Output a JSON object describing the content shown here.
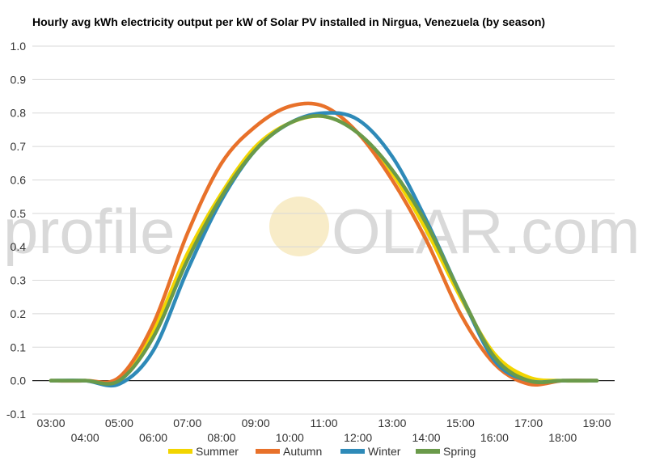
{
  "chart_data": {
    "type": "line",
    "title": "Hourly avg kWh electricity output per kW of Solar PV installed in Nirgua, Venezuela (by season)",
    "xlabel": "",
    "ylabel": "",
    "ylim": [
      -0.1,
      1.0
    ],
    "yticks": [
      "-0.1",
      "0.0",
      "0.1",
      "0.2",
      "0.3",
      "0.4",
      "0.5",
      "0.6",
      "0.7",
      "0.8",
      "0.9",
      "1.0"
    ],
    "x_tick_labels": [
      "03:00",
      "04:00",
      "05:00",
      "06:00",
      "07:00",
      "08:00",
      "09:00",
      "10:00",
      "11:00",
      "12:00",
      "13:00",
      "14:00",
      "15:00",
      "16:00",
      "17:00",
      "18:00",
      "19:00"
    ],
    "x": [
      3,
      4,
      5,
      6,
      7,
      8,
      9,
      10,
      11,
      12,
      13,
      14,
      15,
      16,
      17,
      18,
      19
    ],
    "grid": true,
    "legend": "bottom",
    "watermark": "profileSOLAR.com",
    "series": [
      {
        "name": "Summer",
        "color": "#f2d500",
        "values": [
          0.0,
          0.0,
          0.0,
          0.15,
          0.38,
          0.56,
          0.7,
          0.77,
          0.79,
          0.74,
          0.62,
          0.45,
          0.25,
          0.08,
          0.01,
          0.0,
          0.0
        ]
      },
      {
        "name": "Autumn",
        "color": "#e8712a",
        "values": [
          0.0,
          0.0,
          0.01,
          0.17,
          0.44,
          0.65,
          0.76,
          0.82,
          0.82,
          0.74,
          0.6,
          0.42,
          0.2,
          0.05,
          -0.01,
          0.0,
          0.0
        ]
      },
      {
        "name": "Winter",
        "color": "#2e8ab8",
        "values": [
          0.0,
          0.0,
          -0.01,
          0.09,
          0.33,
          0.54,
          0.69,
          0.77,
          0.8,
          0.78,
          0.67,
          0.48,
          0.26,
          0.06,
          0.0,
          0.0,
          0.0
        ]
      },
      {
        "name": "Spring",
        "color": "#6a9a4a",
        "values": [
          0.0,
          0.0,
          0.0,
          0.13,
          0.36,
          0.55,
          0.69,
          0.77,
          0.79,
          0.74,
          0.63,
          0.47,
          0.26,
          0.07,
          0.0,
          0.0,
          0.0
        ]
      }
    ]
  }
}
